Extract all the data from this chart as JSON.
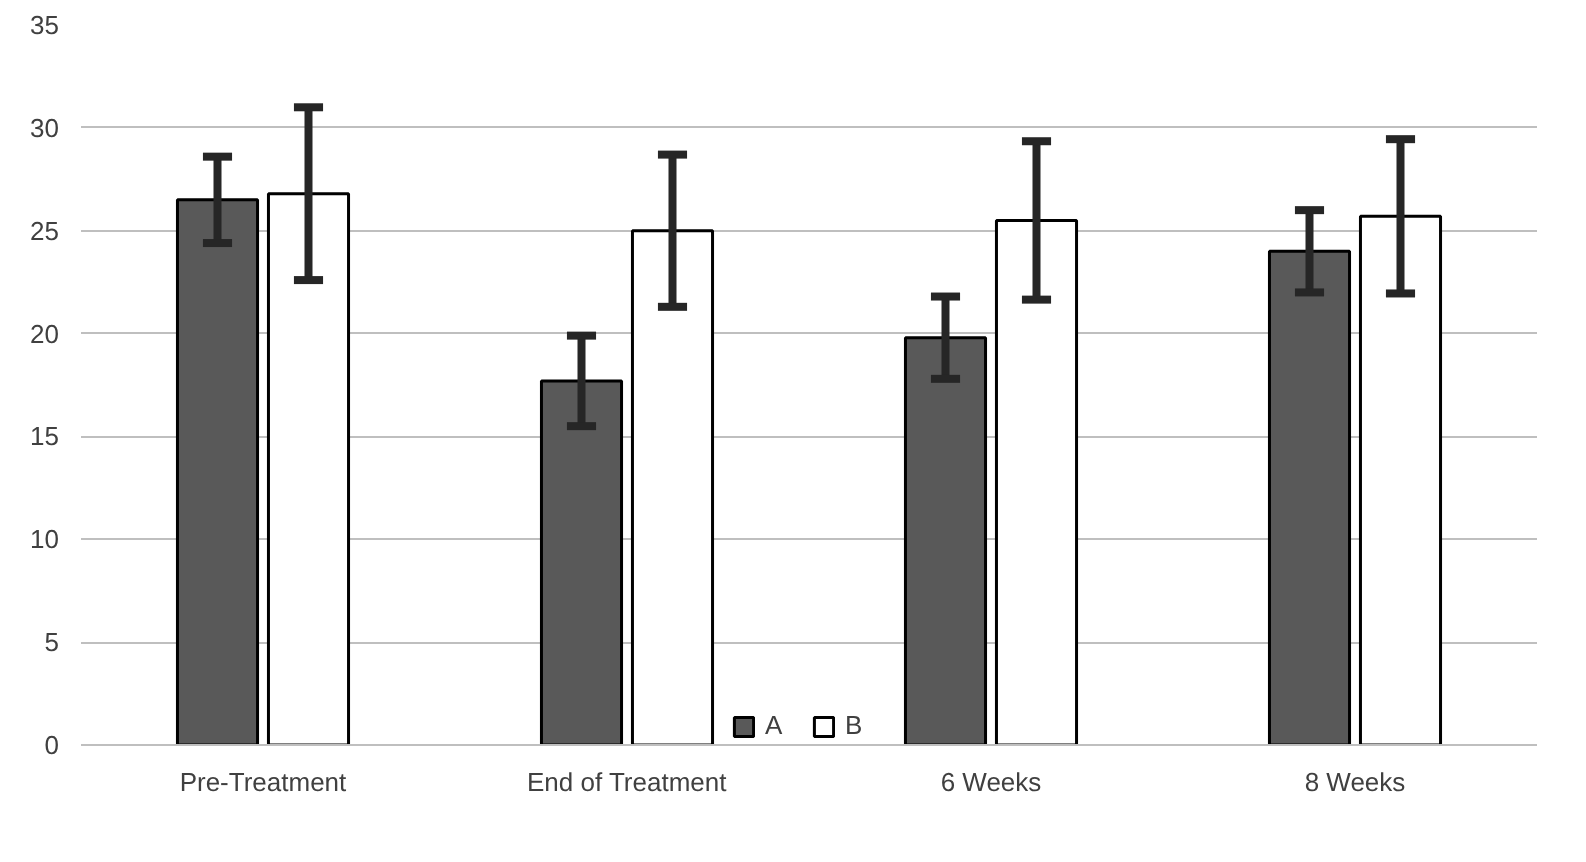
{
  "chart_data": {
    "type": "bar",
    "categories": [
      "Pre-Treatment",
      "End of Treatment",
      "6 Weeks",
      "8 Weeks"
    ],
    "series": [
      {
        "name": "A",
        "color": "#595959",
        "values": [
          26.5,
          17.7,
          19.8,
          24.0
        ],
        "errors": [
          2.1,
          2.2,
          2.0,
          2.0
        ]
      },
      {
        "name": "B",
        "color": "#ffffff",
        "values": [
          26.8,
          25.0,
          25.5,
          25.7
        ],
        "errors": [
          4.2,
          3.7,
          3.85,
          3.75
        ]
      }
    ],
    "ylim": [
      0,
      35
    ],
    "yticks": [
      0,
      5,
      10,
      15,
      20,
      25,
      30,
      35
    ],
    "grid": "y",
    "legend": "bottom"
  }
}
